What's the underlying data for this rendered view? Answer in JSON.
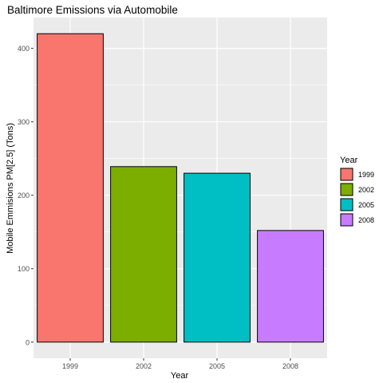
{
  "chart_data": {
    "type": "bar",
    "title": "Baltimore Emissions via Automobile",
    "xlabel": "Year",
    "ylabel": "Mobile Emmisions PM[2.5] (Tons)",
    "categories": [
      "1999",
      "2002",
      "2005",
      "2008"
    ],
    "values": [
      420,
      239,
      230,
      152
    ],
    "colors": [
      "#F8766D",
      "#7CAE00",
      "#00BFC4",
      "#C77CFF"
    ],
    "ylim": [
      -22,
      442
    ],
    "y_ticks": [
      0,
      100,
      200,
      300,
      400
    ],
    "y_minor_ticks": [
      50,
      150,
      250,
      350
    ],
    "grid": true,
    "panel_background": "#EBEBEB",
    "legend": {
      "title": "Year",
      "position": "right",
      "entries": [
        "1999",
        "2002",
        "2005",
        "2008"
      ]
    }
  }
}
